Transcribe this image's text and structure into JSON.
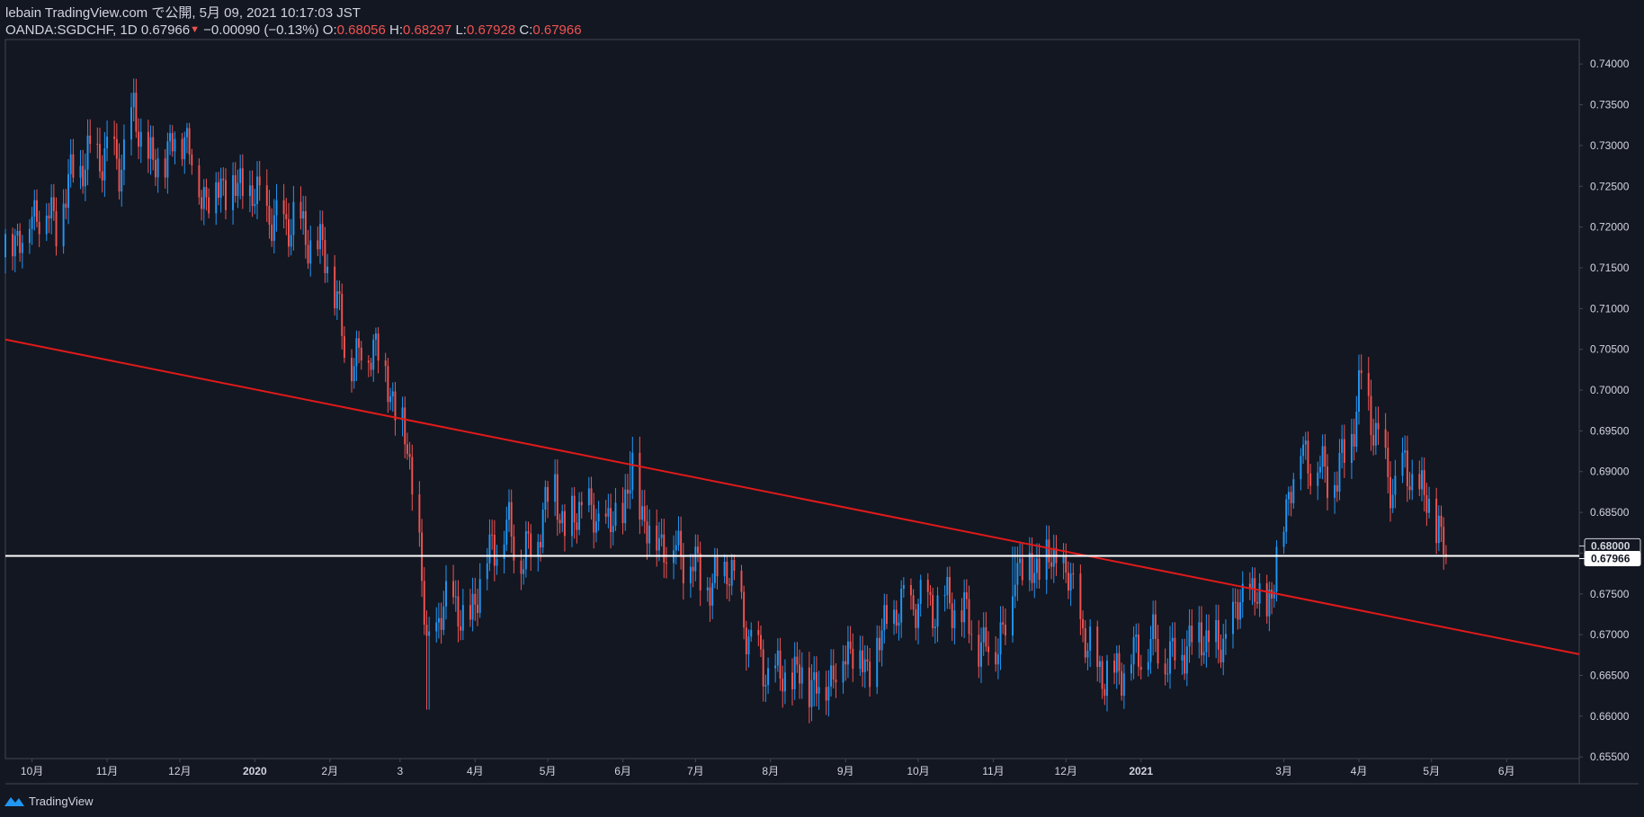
{
  "header": {
    "line1": "lebain TradingView.com で公開, 5月 09, 2021 10:17:03 JST",
    "symbol": "OANDA:SGDCHF, 1D",
    "last": "0.67966",
    "change": "−0.00090 (−0.13%)",
    "o_label": "O:",
    "o_value": "0.68056",
    "h_label": "H:",
    "h_value": "0.68297",
    "l_label": "L:",
    "l_value": "0.67928",
    "c_label": "C:",
    "c_value": "0.67966"
  },
  "footer": {
    "brand": "TradingView"
  },
  "colors": {
    "background": "#131722",
    "up": "#2196f3",
    "down": "#f05350",
    "trendline": "#e01a1a",
    "hline": "#ffffff",
    "axis_text": "#d1d4dc",
    "border": "#434651"
  },
  "chart_data": {
    "type": "candlestick",
    "symbol": "OANDA:SGDCHF",
    "interval": "1D",
    "ylim": [
      0.6548,
      0.743
    ],
    "y_ticks": [
      "0.74000",
      "0.73500",
      "0.73000",
      "0.72500",
      "0.72000",
      "0.71500",
      "0.71000",
      "0.70500",
      "0.70000",
      "0.69500",
      "0.69000",
      "0.68500",
      "0.68000",
      "0.67500",
      "0.67000",
      "0.66500",
      "0.66000",
      "0.65500"
    ],
    "y_tick_values": [
      0.74,
      0.735,
      0.73,
      0.725,
      0.72,
      0.715,
      0.71,
      0.705,
      0.7,
      0.695,
      0.69,
      0.685,
      0.68,
      0.675,
      0.67,
      0.665,
      0.66,
      0.655
    ],
    "x_ticks": [
      "10月",
      "11月",
      "12月",
      "2020",
      "2月",
      "3",
      "4月",
      "5月",
      "6月",
      "7月",
      "8月",
      "9月",
      "10月",
      "11月",
      "12月",
      "2021",
      "3月",
      "4月",
      "5月",
      "6月"
    ],
    "x_tick_dates": [
      "2019-10-01",
      "2019-11-01",
      "2019-12-01",
      "2020-01-01",
      "2020-02-01",
      "2020-03-01",
      "2020-04-01",
      "2020-05-01",
      "2020-06-01",
      "2020-07-01",
      "2020-08-01",
      "2020-09-01",
      "2020-10-01",
      "2020-11-01",
      "2020-12-01",
      "2021-01-01",
      "2021-03-01",
      "2021-04-01",
      "2021-05-01",
      "2021-06-01"
    ],
    "bold_ticks": [
      "2020",
      "2021"
    ],
    "close_path": [
      [
        "2019-09-20",
        0.718
      ],
      [
        "2019-09-27",
        0.7195
      ],
      [
        "2019-10-04",
        0.7225
      ],
      [
        "2019-10-11",
        0.7205
      ],
      [
        "2019-10-18",
        0.7265
      ],
      [
        "2019-10-25",
        0.7285
      ],
      [
        "2019-11-01",
        0.729
      ],
      [
        "2019-11-06",
        0.7275
      ],
      [
        "2019-11-12",
        0.7335
      ],
      [
        "2019-11-20",
        0.727
      ],
      [
        "2019-11-28",
        0.73
      ],
      [
        "2019-12-03",
        0.732
      ],
      [
        "2019-12-10",
        0.724
      ],
      [
        "2019-12-18",
        0.725
      ],
      [
        "2019-12-27",
        0.7245
      ],
      [
        "2020-01-03",
        0.723
      ],
      [
        "2020-01-10",
        0.72
      ],
      [
        "2020-01-17",
        0.721
      ],
      [
        "2020-01-25",
        0.718
      ],
      [
        "2020-02-01",
        0.716
      ],
      [
        "2020-02-07",
        0.705
      ],
      [
        "2020-02-12",
        0.704
      ],
      [
        "2020-02-20",
        0.706
      ],
      [
        "2020-02-27",
        0.699
      ],
      [
        "2020-03-04",
        0.693
      ],
      [
        "2020-03-09",
        0.68
      ],
      [
        "2020-03-12",
        0.668
      ],
      [
        "2020-03-18",
        0.672
      ],
      [
        "2020-03-23",
        0.675
      ],
      [
        "2020-03-28",
        0.67
      ],
      [
        "2020-04-02",
        0.676
      ],
      [
        "2020-04-08",
        0.681
      ],
      [
        "2020-04-15",
        0.683
      ],
      [
        "2020-04-21",
        0.679
      ],
      [
        "2020-04-27",
        0.683
      ],
      [
        "2020-05-04",
        0.689
      ],
      [
        "2020-05-08",
        0.682
      ],
      [
        "2020-05-14",
        0.686
      ],
      [
        "2020-05-20",
        0.684
      ],
      [
        "2020-05-27",
        0.683
      ],
      [
        "2020-06-01",
        0.685
      ],
      [
        "2020-06-05",
        0.69
      ],
      [
        "2020-06-10",
        0.684
      ],
      [
        "2020-06-16",
        0.6815
      ],
      [
        "2020-06-22",
        0.681
      ],
      [
        "2020-06-30",
        0.6785
      ],
      [
        "2020-07-08",
        0.6755
      ],
      [
        "2020-07-14",
        0.679
      ],
      [
        "2020-07-20",
        0.673
      ],
      [
        "2020-07-25",
        0.668
      ],
      [
        "2020-07-31",
        0.665
      ],
      [
        "2020-08-07",
        0.6645
      ],
      [
        "2020-08-14",
        0.665
      ],
      [
        "2020-08-21",
        0.6635
      ],
      [
        "2020-08-28",
        0.666
      ],
      [
        "2020-09-04",
        0.669
      ],
      [
        "2020-09-10",
        0.665
      ],
      [
        "2020-09-16",
        0.67
      ],
      [
        "2020-09-23",
        0.673
      ],
      [
        "2020-09-30",
        0.674
      ],
      [
        "2020-10-07",
        0.6735
      ],
      [
        "2020-10-14",
        0.674
      ],
      [
        "2020-10-21",
        0.672
      ],
      [
        "2020-10-28",
        0.668
      ],
      [
        "2020-11-04",
        0.67
      ],
      [
        "2020-11-08",
        0.672
      ],
      [
        "2020-11-10",
        0.679
      ],
      [
        "2020-11-17",
        0.678
      ],
      [
        "2020-11-24",
        0.679
      ],
      [
        "2020-11-30",
        0.678
      ],
      [
        "2020-12-05",
        0.674
      ],
      [
        "2020-12-10",
        0.668
      ],
      [
        "2020-12-17",
        0.665
      ],
      [
        "2020-12-24",
        0.666
      ],
      [
        "2020-12-31",
        0.668
      ],
      [
        "2021-01-06",
        0.669
      ],
      [
        "2021-01-13",
        0.667
      ],
      [
        "2021-01-20",
        0.669
      ],
      [
        "2021-01-27",
        0.67
      ],
      [
        "2021-02-02",
        0.668
      ],
      [
        "2021-02-09",
        0.672
      ],
      [
        "2021-02-14",
        0.676
      ],
      [
        "2021-02-20",
        0.673
      ],
      [
        "2021-02-24",
        0.675
      ],
      [
        "2021-02-28",
        0.683
      ],
      [
        "2021-03-04",
        0.689
      ],
      [
        "2021-03-08",
        0.693
      ],
      [
        "2021-03-13",
        0.691
      ],
      [
        "2021-03-18",
        0.69
      ],
      [
        "2021-03-23",
        0.689
      ],
      [
        "2021-03-26",
        0.692
      ],
      [
        "2021-03-30",
        0.696
      ],
      [
        "2021-04-02",
        0.701
      ],
      [
        "2021-04-07",
        0.696
      ],
      [
        "2021-04-12",
        0.69
      ],
      [
        "2021-04-15",
        0.688
      ],
      [
        "2021-04-20",
        0.69
      ],
      [
        "2021-04-25",
        0.688
      ],
      [
        "2021-04-29",
        0.686
      ],
      [
        "2021-05-04",
        0.683
      ],
      [
        "2021-05-07",
        0.6797
      ]
    ],
    "swing_highs": [
      [
        "2019-11-12",
        0.735
      ],
      [
        "2020-05-04",
        0.6915
      ],
      [
        "2020-06-05",
        0.6925
      ],
      [
        "2020-11-10",
        0.6808
      ],
      [
        "2021-04-02",
        0.7035
      ]
    ],
    "swing_lows": [
      [
        "2020-03-13",
        0.6608
      ],
      [
        "2020-08-20",
        0.6612
      ],
      [
        "2020-12-17",
        0.6628
      ]
    ],
    "trendline": {
      "start": [
        "2019-09-20",
        0.7062
      ],
      "end": [
        "2021-07-01",
        0.6676
      ],
      "color": "#e01a1a"
    },
    "hline": {
      "value": 0.67966,
      "label": "0.67966",
      "color": "#ffffff"
    },
    "price_labels": [
      "0.68000",
      "0.67966"
    ],
    "price_label_values": [
      0.68,
      0.67966
    ]
  }
}
